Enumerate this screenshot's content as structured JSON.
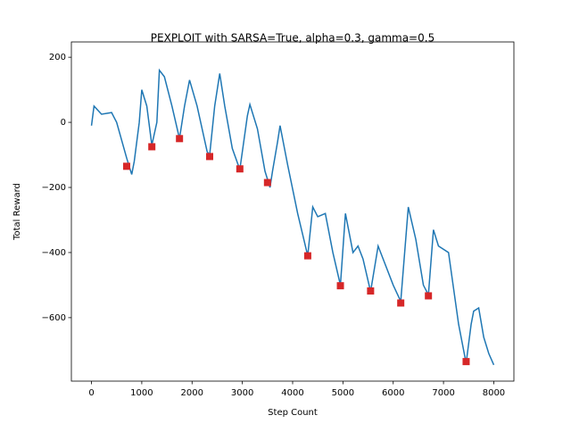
{
  "chart_data": {
    "type": "line",
    "title": "PEXPLOIT with SARSA=True, alpha=0.3, gamma=0.5",
    "x_label": "Step Count",
    "y_label": "Total Reward",
    "x": [
      0,
      50,
      200,
      400,
      500,
      700,
      800,
      850,
      950,
      1000,
      1100,
      1200,
      1300,
      1350,
      1450,
      1600,
      1750,
      1850,
      1950,
      2100,
      2300,
      2350,
      2450,
      2550,
      2650,
      2800,
      2950,
      3100,
      3150,
      3300,
      3450,
      3550,
      3600,
      3700,
      3750,
      3900,
      4100,
      4300,
      4400,
      4500,
      4650,
      4800,
      4950,
      5050,
      5200,
      5300,
      5400,
      5550,
      5700,
      5800,
      6000,
      6150,
      6300,
      6450,
      6600,
      6700,
      6800,
      6900,
      7100,
      7300,
      7450,
      7550,
      7600,
      7700,
      7800,
      7900,
      8000
    ],
    "series": [
      {
        "color": "#1f77b4",
        "values": [
          -10,
          50,
          25,
          30,
          0,
          -110,
          -160,
          -120,
          0,
          100,
          50,
          -70,
          0,
          160,
          140,
          50,
          -50,
          50,
          130,
          50,
          -90,
          -100,
          50,
          150,
          50,
          -80,
          -145,
          20,
          55,
          -20,
          -150,
          -200,
          -150,
          -60,
          -10,
          -130,
          -280,
          -410,
          -260,
          -290,
          -280,
          -400,
          -500,
          -280,
          -400,
          -380,
          -420,
          -520,
          -380,
          -420,
          -500,
          -550,
          -260,
          -360,
          -500,
          -530,
          -330,
          -380,
          -400,
          -620,
          -740,
          -620,
          -580,
          -570,
          -660,
          -710,
          -745
        ]
      }
    ],
    "markers": {
      "color": "#d62728",
      "x": [
        700,
        1200,
        1750,
        2350,
        2950,
        3500,
        4300,
        4950,
        5550,
        6150,
        6700,
        7450
      ],
      "values": [
        -135,
        -75,
        -50,
        -105,
        -143,
        -185,
        -410,
        -502,
        -518,
        -555,
        -533,
        -735
      ]
    },
    "xlim": [
      -400,
      8400
    ],
    "ylim": [
      -795,
      247
    ],
    "xticks": [
      0,
      1000,
      2000,
      3000,
      4000,
      5000,
      6000,
      7000,
      8000
    ],
    "yticks": [
      {
        "value": -600,
        "label": "−600"
      },
      {
        "value": -400,
        "label": "−400"
      },
      {
        "value": -200,
        "label": "−200"
      },
      0,
      200
    ]
  }
}
